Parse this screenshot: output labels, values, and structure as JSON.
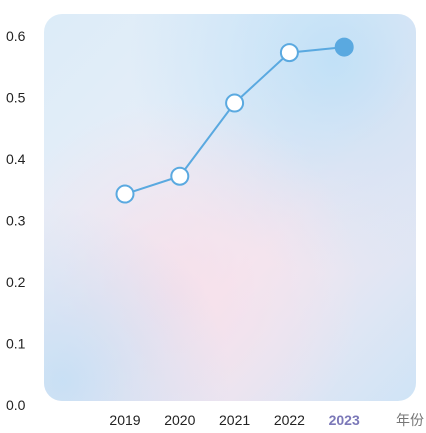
{
  "chart_data": {
    "type": "line",
    "categories": [
      "2019",
      "2020",
      "2021",
      "2022",
      "2023"
    ],
    "values": [
      0.343,
      0.372,
      0.491,
      0.573,
      0.582
    ],
    "highlight_index": 4,
    "xlabel": "年份",
    "ylabel": "",
    "ylim": [
      0,
      0.6
    ],
    "yticks": [
      "0.0",
      "0.1",
      "0.2",
      "0.3",
      "0.4",
      "0.5",
      "0.6"
    ],
    "grid": false,
    "colors": {
      "line": "#5aa9e0",
      "marker_fill": "#ffffff",
      "highlight_fill": "#5aa9e0",
      "tick_text": "#222222",
      "highlight_tick_text": "#7b78b8",
      "background_top": "#d8ecfa",
      "background_pink": "#f6e6ef"
    }
  }
}
